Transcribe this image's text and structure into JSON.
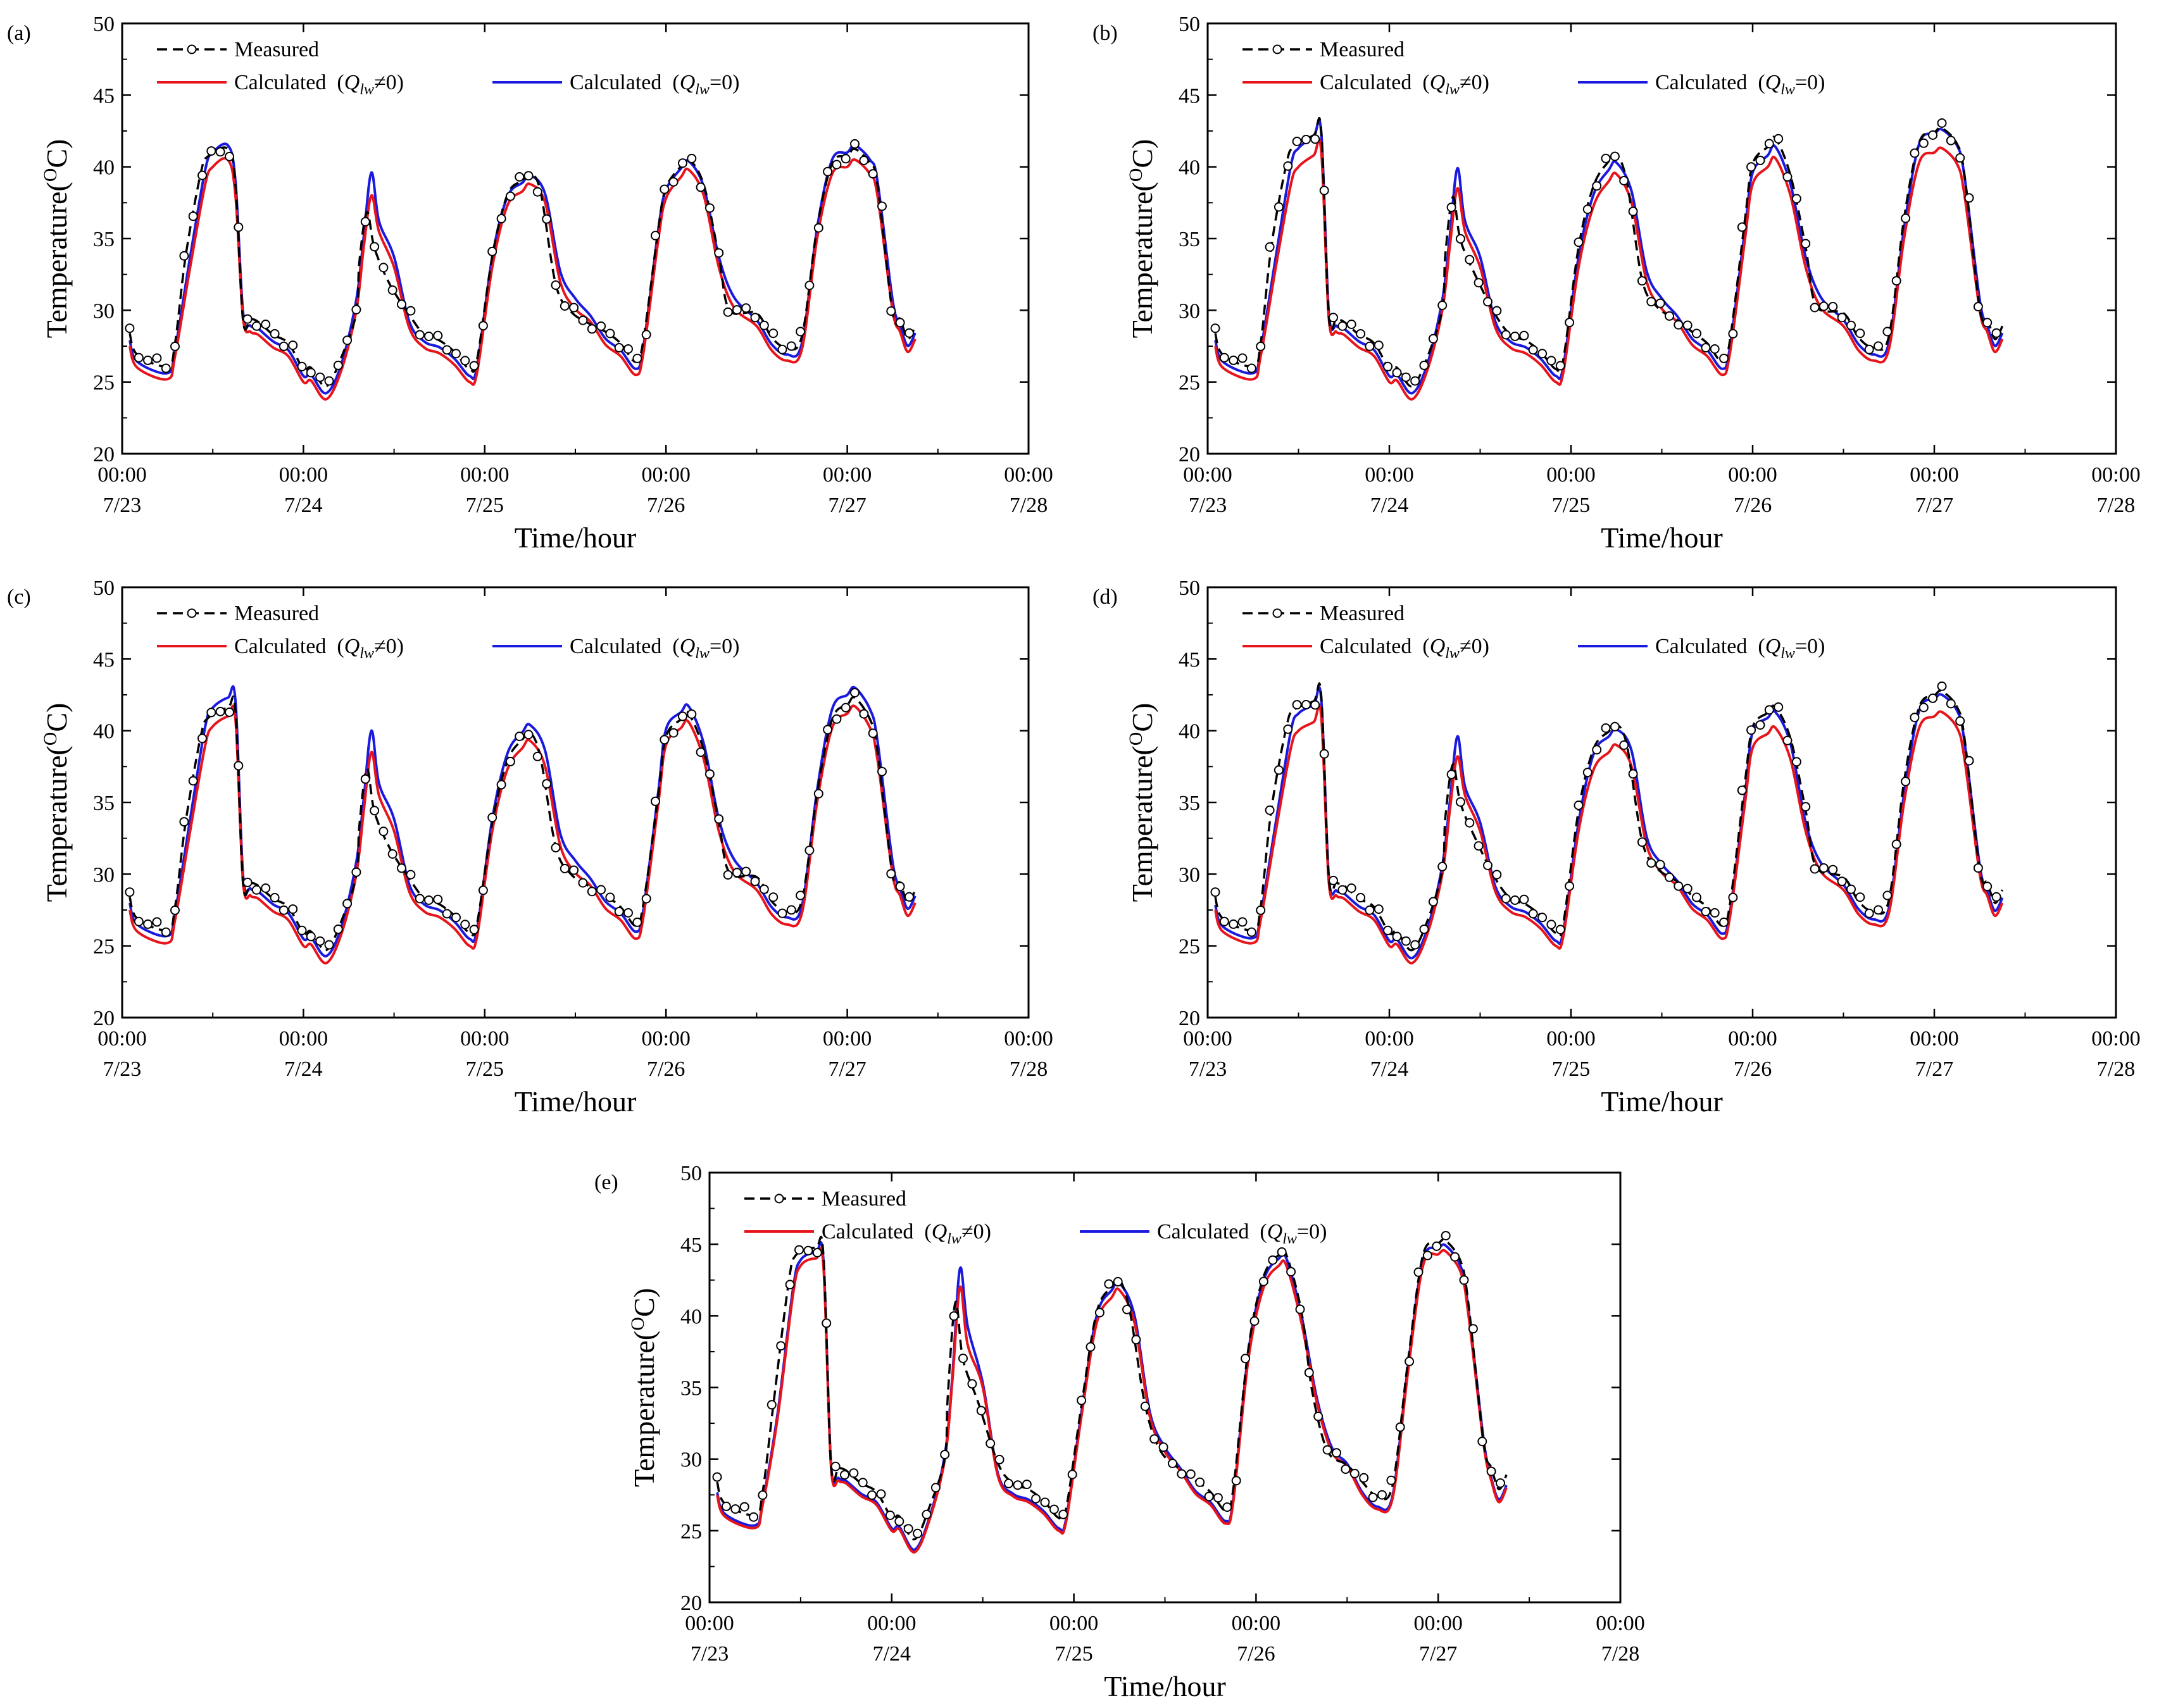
{
  "figure": {
    "x_title": "Time/hour",
    "y_title_main": "Temperature(",
    "y_title_sup": "O",
    "y_title_end": "C)",
    "legend": {
      "measured": "Measured",
      "calc_nonzero_prefix": "Calculated  (",
      "calc_nonzero_q": "Q",
      "calc_nonzero_sub": "lw",
      "calc_nonzero_suffix": "≠0)",
      "calc_zero_prefix": "Calculated  (",
      "calc_zero_q": "Q",
      "calc_zero_sub": "lw",
      "calc_zero_suffix": "=0)"
    },
    "colors": {
      "measured": "#000000",
      "calc_nonzero": "#e8141b",
      "calc_zero": "#1a1adf"
    }
  },
  "chart_data": [
    {
      "panel": "(a)",
      "type": "line",
      "xlim": [
        0,
        120
      ],
      "ylim": [
        20,
        50
      ],
      "yticks": [
        20,
        25,
        30,
        35,
        40,
        45,
        50
      ],
      "xtick_time": [
        "00:00",
        "00:00",
        "00:00",
        "00:00",
        "00:00",
        "00:00"
      ],
      "xtick_date": [
        "7/23",
        "7/24",
        "7/25",
        "7/26",
        "7/27",
        "7/28"
      ],
      "nodes": [
        [
          1,
          27.5
        ],
        [
          2,
          26.0
        ],
        [
          6,
          25.2
        ],
        [
          7,
          26.8
        ],
        [
          9,
          33
        ],
        [
          11,
          38.8
        ],
        [
          12,
          40.0
        ],
        [
          14,
          40.5
        ],
        [
          15,
          38.0
        ],
        [
          16,
          29.5
        ],
        [
          17,
          28.5
        ],
        [
          18,
          28.3
        ],
        [
          20,
          27.4
        ],
        [
          22,
          26.8
        ],
        [
          24,
          25.0
        ],
        [
          25,
          25.1
        ],
        [
          27,
          23.8
        ],
        [
          29,
          25.8
        ],
        [
          31,
          30.0
        ],
        [
          32,
          34.5
        ],
        [
          33,
          38.0
        ],
        [
          34,
          35.5
        ],
        [
          36,
          33.0
        ],
        [
          38,
          28.8
        ],
        [
          40,
          27.4
        ],
        [
          42,
          27.0
        ],
        [
          44,
          26.2
        ],
        [
          46,
          25.0
        ],
        [
          47,
          25.7
        ],
        [
          49,
          33
        ],
        [
          51,
          37.3
        ],
        [
          53,
          38.3
        ],
        [
          54,
          38.8
        ],
        [
          56,
          37.5
        ],
        [
          58,
          32.0
        ],
        [
          60,
          30.1
        ],
        [
          62,
          29.2
        ],
        [
          64,
          27.6
        ],
        [
          66,
          26.8
        ],
        [
          68,
          25.5
        ],
        [
          69,
          27.0
        ],
        [
          71,
          35
        ],
        [
          72,
          37.8
        ],
        [
          74,
          39.3
        ],
        [
          75,
          39.8
        ],
        [
          77,
          38.0
        ],
        [
          79,
          33.0
        ],
        [
          81,
          30.2
        ],
        [
          84,
          28.9
        ],
        [
          86,
          27.2
        ],
        [
          88,
          26.5
        ],
        [
          90,
          27.3
        ],
        [
          92,
          35
        ],
        [
          94,
          39.5
        ],
        [
          96,
          40.0
        ],
        [
          97,
          40.5
        ],
        [
          99,
          39.5
        ],
        [
          100,
          38.0
        ],
        [
          102,
          30
        ],
        [
          103,
          28.5
        ],
        [
          104,
          27.1
        ],
        [
          105,
          28.0
        ]
      ],
      "offsets_zero": [
        1.0,
        1.6,
        0.6,
        1.2
      ],
      "offsets_meas": [
        0.3,
        -1.3,
        1.2,
        -0.6
      ],
      "marker_step": 1.2
    },
    {
      "panel": "(b)",
      "type": "line",
      "xlim": [
        0,
        120
      ],
      "ylim": [
        20,
        50
      ],
      "yticks": [
        20,
        25,
        30,
        35,
        40,
        45,
        50
      ],
      "xtick_time": [
        "00:00",
        "00:00",
        "00:00",
        "00:00",
        "00:00",
        "00:00"
      ],
      "xtick_date": [
        "7/23",
        "7/24",
        "7/25",
        "7/26",
        "7/27",
        "7/28"
      ],
      "nodes": [
        [
          1,
          27.5
        ],
        [
          2,
          26.0
        ],
        [
          6,
          25.2
        ],
        [
          7,
          26.8
        ],
        [
          9,
          33
        ],
        [
          11,
          38.8
        ],
        [
          12,
          40.0
        ],
        [
          14,
          40.8
        ],
        [
          15,
          41.1
        ],
        [
          16,
          29.5
        ],
        [
          17,
          28.5
        ],
        [
          18,
          28.3
        ],
        [
          20,
          27.4
        ],
        [
          22,
          26.8
        ],
        [
          24,
          25.0
        ],
        [
          25,
          25.1
        ],
        [
          27,
          23.8
        ],
        [
          29,
          25.8
        ],
        [
          31,
          30.0
        ],
        [
          32,
          34.5
        ],
        [
          33,
          38.5
        ],
        [
          34,
          35.5
        ],
        [
          36,
          33.0
        ],
        [
          38,
          28.8
        ],
        [
          40,
          27.4
        ],
        [
          42,
          27.0
        ],
        [
          44,
          26.2
        ],
        [
          46,
          25.0
        ],
        [
          47,
          25.7
        ],
        [
          49,
          33
        ],
        [
          51,
          37.3
        ],
        [
          53,
          39.0
        ],
        [
          54,
          39.5
        ],
        [
          56,
          37.5
        ],
        [
          58,
          32.0
        ],
        [
          60,
          30.1
        ],
        [
          62,
          29.2
        ],
        [
          64,
          27.6
        ],
        [
          66,
          26.8
        ],
        [
          68,
          25.5
        ],
        [
          69,
          27.0
        ],
        [
          71,
          35
        ],
        [
          72,
          38.8
        ],
        [
          74,
          40.0
        ],
        [
          75,
          40.6
        ],
        [
          77,
          38.0
        ],
        [
          79,
          33.0
        ],
        [
          81,
          30.2
        ],
        [
          84,
          28.9
        ],
        [
          86,
          27.2
        ],
        [
          88,
          26.5
        ],
        [
          90,
          27.3
        ],
        [
          92,
          35
        ],
        [
          94,
          40.3
        ],
        [
          96,
          41.0
        ],
        [
          97,
          41.3
        ],
        [
          99,
          40.2
        ],
        [
          100,
          38.0
        ],
        [
          102,
          30
        ],
        [
          103,
          28.5
        ],
        [
          104,
          27.1
        ],
        [
          105,
          28.0
        ]
      ],
      "offsets_zero": [
        1.3,
        1.4,
        0.8,
        1.2
      ],
      "offsets_meas": [
        1.4,
        -1.3,
        1.4,
        0.4
      ],
      "marker_step": 1.2
    },
    {
      "panel": "(c)",
      "type": "line",
      "xlim": [
        0,
        120
      ],
      "ylim": [
        20,
        50
      ],
      "yticks": [
        20,
        25,
        30,
        35,
        40,
        45,
        50
      ],
      "xtick_time": [
        "00:00",
        "00:00",
        "00:00",
        "00:00",
        "00:00",
        "00:00"
      ],
      "xtick_date": [
        "7/23",
        "7/24",
        "7/25",
        "7/26",
        "7/27",
        "7/28"
      ],
      "nodes": [
        [
          1,
          27.5
        ],
        [
          2,
          26.0
        ],
        [
          6,
          25.2
        ],
        [
          7,
          26.8
        ],
        [
          9,
          33
        ],
        [
          11,
          39.0
        ],
        [
          12,
          40.3
        ],
        [
          14,
          41.0
        ],
        [
          15,
          40.8
        ],
        [
          16,
          29.5
        ],
        [
          17,
          28.5
        ],
        [
          18,
          28.3
        ],
        [
          20,
          27.4
        ],
        [
          22,
          26.8
        ],
        [
          24,
          25.0
        ],
        [
          25,
          25.1
        ],
        [
          27,
          23.8
        ],
        [
          29,
          25.8
        ],
        [
          31,
          30.0
        ],
        [
          32,
          34.5
        ],
        [
          33,
          38.5
        ],
        [
          34,
          35.5
        ],
        [
          36,
          33.0
        ],
        [
          38,
          28.8
        ],
        [
          40,
          27.4
        ],
        [
          42,
          27.0
        ],
        [
          44,
          26.2
        ],
        [
          46,
          25.0
        ],
        [
          47,
          25.7
        ],
        [
          49,
          33
        ],
        [
          51,
          37.3
        ],
        [
          53,
          38.8
        ],
        [
          54,
          39.3
        ],
        [
          56,
          37.5
        ],
        [
          58,
          32.0
        ],
        [
          60,
          30.1
        ],
        [
          62,
          29.2
        ],
        [
          64,
          27.6
        ],
        [
          66,
          26.8
        ],
        [
          68,
          25.5
        ],
        [
          69,
          27.0
        ],
        [
          71,
          35
        ],
        [
          72,
          39.0
        ],
        [
          74,
          40.2
        ],
        [
          75,
          40.6
        ],
        [
          77,
          38.0
        ],
        [
          79,
          33.0
        ],
        [
          81,
          30.2
        ],
        [
          84,
          28.9
        ],
        [
          86,
          27.2
        ],
        [
          88,
          26.5
        ],
        [
          90,
          27.3
        ],
        [
          92,
          35
        ],
        [
          94,
          40.2
        ],
        [
          96,
          41.2
        ],
        [
          97,
          41.7
        ],
        [
          99,
          40.2
        ],
        [
          100,
          38.0
        ],
        [
          102,
          30
        ],
        [
          103,
          28.5
        ],
        [
          104,
          27.1
        ],
        [
          105,
          28.0
        ]
      ],
      "offsets_zero": [
        1.3,
        1.5,
        1.1,
        1.4
      ],
      "offsets_meas": [
        0.3,
        -1.3,
        0.9,
        -0.3
      ],
      "marker_step": 1.2
    },
    {
      "panel": "(d)",
      "type": "line",
      "xlim": [
        0,
        120
      ],
      "ylim": [
        20,
        50
      ],
      "yticks": [
        20,
        25,
        30,
        35,
        40,
        45,
        50
      ],
      "xtick_time": [
        "00:00",
        "00:00",
        "00:00",
        "00:00",
        "00:00",
        "00:00"
      ],
      "xtick_date": [
        "7/23",
        "7/24",
        "7/25",
        "7/26",
        "7/27",
        "7/28"
      ],
      "nodes": [
        [
          1,
          27.5
        ],
        [
          2,
          26.0
        ],
        [
          6,
          25.2
        ],
        [
          7,
          26.8
        ],
        [
          9,
          33
        ],
        [
          11,
          38.8
        ],
        [
          12,
          40.0
        ],
        [
          14,
          40.6
        ],
        [
          15,
          41.0
        ],
        [
          16,
          29.5
        ],
        [
          17,
          28.5
        ],
        [
          18,
          28.3
        ],
        [
          20,
          27.4
        ],
        [
          22,
          26.8
        ],
        [
          24,
          25.0
        ],
        [
          25,
          25.1
        ],
        [
          27,
          23.8
        ],
        [
          29,
          25.8
        ],
        [
          31,
          30.0
        ],
        [
          32,
          34.5
        ],
        [
          33,
          38.2
        ],
        [
          34,
          35.5
        ],
        [
          36,
          33.0
        ],
        [
          38,
          28.8
        ],
        [
          40,
          27.4
        ],
        [
          42,
          27.0
        ],
        [
          44,
          26.2
        ],
        [
          46,
          25.0
        ],
        [
          47,
          25.7
        ],
        [
          49,
          33
        ],
        [
          51,
          37.3
        ],
        [
          53,
          38.5
        ],
        [
          54,
          39.0
        ],
        [
          56,
          37.5
        ],
        [
          58,
          32.0
        ],
        [
          60,
          30.1
        ],
        [
          62,
          29.2
        ],
        [
          64,
          27.6
        ],
        [
          66,
          26.8
        ],
        [
          68,
          25.5
        ],
        [
          69,
          27.0
        ],
        [
          71,
          35
        ],
        [
          72,
          38.8
        ],
        [
          74,
          39.8
        ],
        [
          75,
          40.2
        ],
        [
          77,
          38.0
        ],
        [
          79,
          33.0
        ],
        [
          81,
          30.2
        ],
        [
          84,
          28.9
        ],
        [
          86,
          27.2
        ],
        [
          88,
          26.5
        ],
        [
          90,
          27.3
        ],
        [
          92,
          35
        ],
        [
          94,
          40.2
        ],
        [
          96,
          41.0
        ],
        [
          97,
          41.3
        ],
        [
          99,
          40.2
        ],
        [
          100,
          38.0
        ],
        [
          102,
          30
        ],
        [
          103,
          28.5
        ],
        [
          104,
          27.1
        ],
        [
          105,
          28.0
        ]
      ],
      "offsets_zero": [
        1.2,
        1.4,
        1.1,
        1.0
      ],
      "offsets_meas": [
        1.5,
        -1.3,
        1.4,
        1.0
      ],
      "marker_step": 1.2
    },
    {
      "panel": "(e)",
      "type": "line",
      "xlim": [
        0,
        120
      ],
      "ylim": [
        20,
        50
      ],
      "yticks": [
        20,
        25,
        30,
        35,
        40,
        45,
        50
      ],
      "xtick_time": [
        "00:00",
        "00:00",
        "00:00",
        "00:00",
        "00:00",
        "00:00"
      ],
      "xtick_date": [
        "7/23",
        "7/24",
        "7/25",
        "7/26",
        "7/27",
        "7/28"
      ],
      "nodes": [
        [
          1,
          27.5
        ],
        [
          2,
          26.0
        ],
        [
          6,
          25.2
        ],
        [
          7,
          26.8
        ],
        [
          9,
          33
        ],
        [
          11,
          41.5
        ],
        [
          12,
          43.5
        ],
        [
          14,
          44.0
        ],
        [
          15,
          43.5
        ],
        [
          16,
          29.5
        ],
        [
          17,
          28.5
        ],
        [
          18,
          28.3
        ],
        [
          20,
          27.4
        ],
        [
          22,
          26.8
        ],
        [
          24,
          25.0
        ],
        [
          25,
          25.1
        ],
        [
          27,
          23.5
        ],
        [
          29,
          25.8
        ],
        [
          31,
          30.0
        ],
        [
          32,
          35.5
        ],
        [
          33,
          42.0
        ],
        [
          34,
          38.0
        ],
        [
          36,
          35.0
        ],
        [
          38,
          28.8
        ],
        [
          40,
          27.4
        ],
        [
          42,
          27.0
        ],
        [
          44,
          26.2
        ],
        [
          46,
          25.0
        ],
        [
          47,
          25.7
        ],
        [
          49,
          33
        ],
        [
          51,
          39.5
        ],
        [
          53,
          41.3
        ],
        [
          54,
          41.8
        ],
        [
          56,
          39.5
        ],
        [
          58,
          33.0
        ],
        [
          60,
          30.5
        ],
        [
          62,
          29.2
        ],
        [
          64,
          27.6
        ],
        [
          66,
          26.8
        ],
        [
          68,
          25.5
        ],
        [
          69,
          27.0
        ],
        [
          71,
          37
        ],
        [
          73,
          42.0
        ],
        [
          75,
          43.5
        ],
        [
          76,
          43.5
        ],
        [
          78,
          39.5
        ],
        [
          80,
          34.0
        ],
        [
          82,
          30.5
        ],
        [
          84,
          29.5
        ],
        [
          86,
          27.5
        ],
        [
          88,
          26.5
        ],
        [
          90,
          27.3
        ],
        [
          92,
          36
        ],
        [
          94,
          43.5
        ],
        [
          96,
          44.3
        ],
        [
          97,
          44.5
        ],
        [
          99,
          43.0
        ],
        [
          100,
          40.0
        ],
        [
          102,
          31
        ],
        [
          103,
          28.5
        ],
        [
          104,
          27.0
        ],
        [
          105,
          28.0
        ]
      ],
      "offsets_zero": [
        0.4,
        1.3,
        0.5,
        0.5
      ],
      "offsets_meas": [
        0.7,
        -1.4,
        0.8,
        0.3
      ],
      "marker_step": 1.2
    }
  ]
}
